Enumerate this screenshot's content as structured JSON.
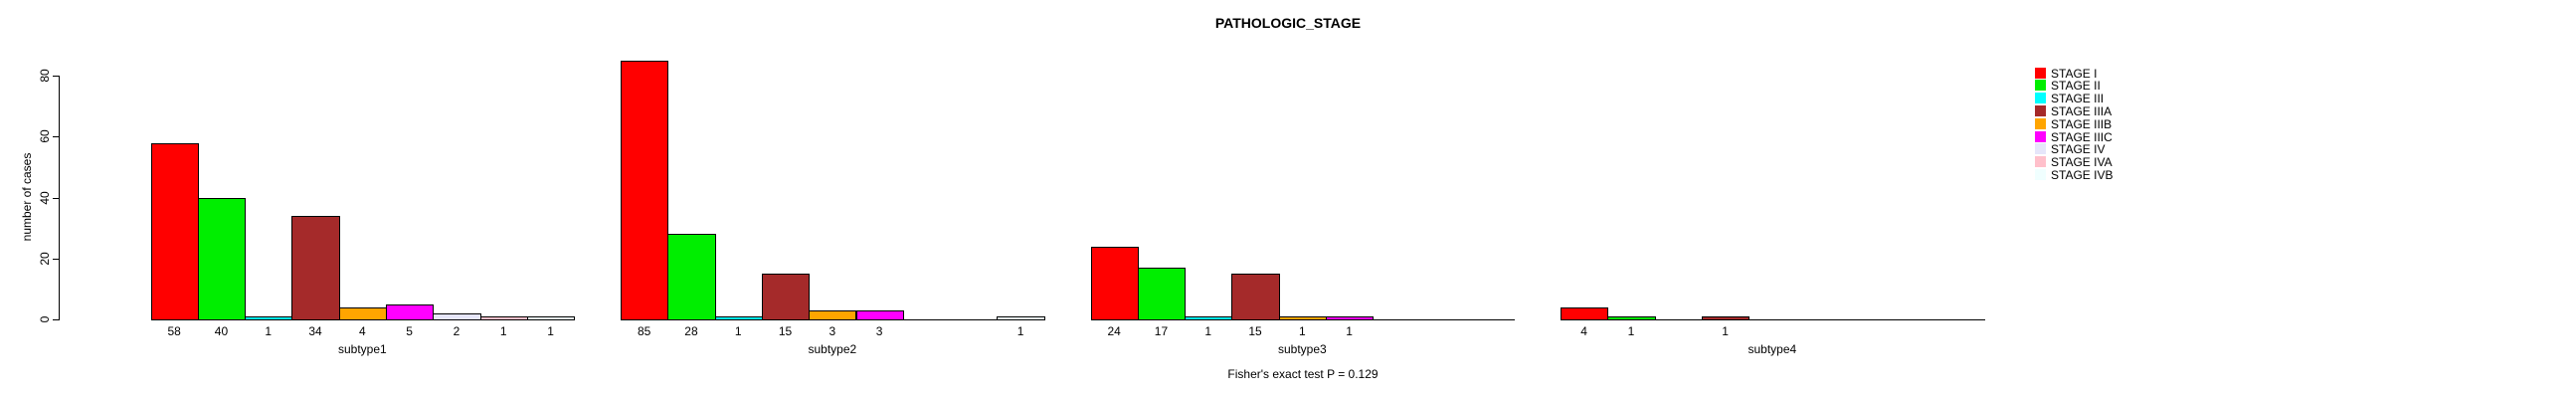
{
  "chart_data": {
    "type": "bar",
    "title": "PATHOLOGIC_STAGE",
    "ylabel": "number of cases",
    "ylim": [
      0,
      80
    ],
    "yticks": [
      0,
      20,
      40,
      60,
      80
    ],
    "grid": false,
    "legend_position": "right",
    "annotation": "Fisher's exact test P = 0.129",
    "categories": [
      "subtype1",
      "subtype2",
      "subtype3",
      "subtype4"
    ],
    "series": [
      {
        "name": "STAGE I",
        "color": "#FF0000",
        "values": [
          58,
          85,
          24,
          4
        ]
      },
      {
        "name": "STAGE II",
        "color": "#00EE00",
        "values": [
          40,
          28,
          17,
          1
        ]
      },
      {
        "name": "STAGE III",
        "color": "#00FFFF",
        "values": [
          1,
          1,
          1,
          0
        ]
      },
      {
        "name": "STAGE IIIA",
        "color": "#A52A2A",
        "values": [
          34,
          15,
          15,
          1
        ]
      },
      {
        "name": "STAGE IIIB",
        "color": "#FFA500",
        "values": [
          4,
          3,
          1,
          0
        ]
      },
      {
        "name": "STAGE IIIC",
        "color": "#FF00FF",
        "values": [
          5,
          3,
          1,
          0
        ]
      },
      {
        "name": "STAGE IV",
        "color": "#E6E6FA",
        "values": [
          2,
          0,
          0,
          0
        ]
      },
      {
        "name": "STAGE IVA",
        "color": "#FFC0CB",
        "values": [
          1,
          0,
          0,
          0
        ]
      },
      {
        "name": "STAGE IVB",
        "color": "#F0FFFF",
        "values": [
          1,
          1,
          0,
          0
        ]
      }
    ]
  }
}
